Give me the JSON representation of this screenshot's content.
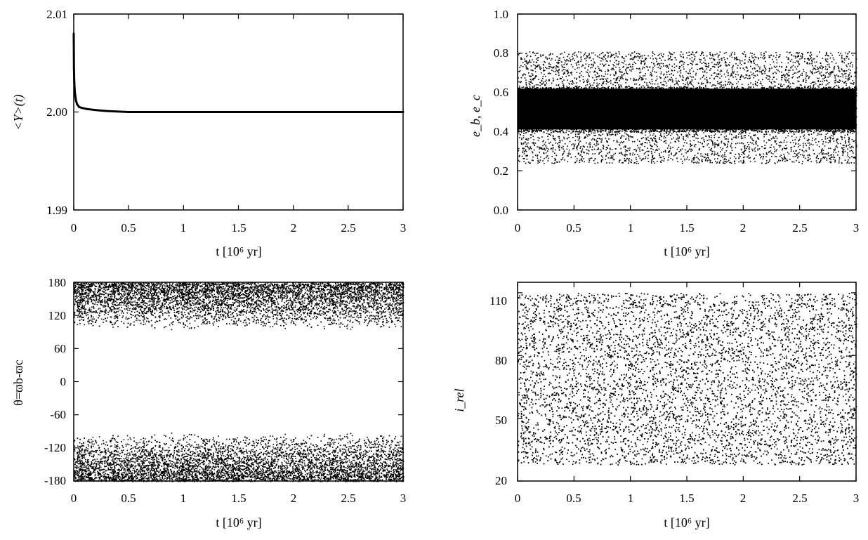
{
  "chart_data": [
    {
      "type": "line",
      "panel": "top-left",
      "xlabel": "t [10⁶ yr]",
      "ylabel": "<Y>(t)",
      "xlim": [
        0,
        3
      ],
      "ylim": [
        1.99,
        2.01
      ],
      "xticks": [
        "0",
        "0.5",
        "1",
        "1.5",
        "2",
        "2.5",
        "3"
      ],
      "yticks": [
        "1.99",
        "2.00",
        "2.01"
      ],
      "series": [
        {
          "x": [
            0,
            0.002,
            0.005,
            0.01,
            0.02,
            0.03,
            0.05,
            0.08,
            0.12,
            0.2,
            0.3,
            0.5,
            1.0,
            1.5,
            2.0,
            2.5,
            3.0
          ],
          "y": [
            2.008,
            2.0045,
            2.003,
            2.002,
            2.0012,
            2.0008,
            2.0005,
            2.0004,
            2.0003,
            2.0002,
            2.0001,
            2.0,
            2.0,
            2.0,
            2.0,
            2.0,
            2.0
          ]
        }
      ]
    },
    {
      "type": "scatter",
      "panel": "top-right",
      "xlabel": "t [10⁶ yr]",
      "ylabel": "e_b, e_c",
      "xlim": [
        0,
        3
      ],
      "ylim": [
        0.0,
        1.0
      ],
      "xticks": [
        "0",
        "0.5",
        "1",
        "1.5",
        "2",
        "2.5",
        "3"
      ],
      "yticks": [
        "0.0",
        "0.2",
        "0.4",
        "0.6",
        "0.8",
        "1.0"
      ],
      "bands": [
        {
          "ymin": 0.24,
          "ymax": 0.81,
          "density": "sparse"
        },
        {
          "ymin": 0.4,
          "ymax": 0.63,
          "density": "dense"
        }
      ]
    },
    {
      "type": "scatter",
      "panel": "bottom-left",
      "xlabel": "t [10⁶ yr]",
      "ylabel": "θ=ϖb-ϖc",
      "xlim": [
        0,
        3
      ],
      "ylim": [
        -180,
        180
      ],
      "xticks": [
        "0",
        "0.5",
        "1",
        "1.5",
        "2",
        "2.5",
        "3"
      ],
      "yticks": [
        "180",
        "120",
        "60",
        "0",
        "-60",
        "-120",
        "-180"
      ],
      "bands": [
        {
          "ymin": 95,
          "ymax": 180,
          "density": "dense-toward-edge"
        },
        {
          "ymin": -180,
          "ymax": -92,
          "density": "dense-toward-edge"
        }
      ]
    },
    {
      "type": "scatter",
      "panel": "bottom-right",
      "xlabel": "t [10⁶ yr]",
      "ylabel": "i_rel",
      "xlim": [
        0,
        3
      ],
      "ylim": [
        20,
        115
      ],
      "xticks": [
        "0",
        "0.5",
        "1",
        "1.5",
        "2",
        "2.5",
        "3"
      ],
      "yticks": [
        "110",
        "80",
        "50",
        "20"
      ],
      "bands": [
        {
          "ymin": 28,
          "ymax": 110,
          "density": "dense"
        }
      ]
    }
  ]
}
